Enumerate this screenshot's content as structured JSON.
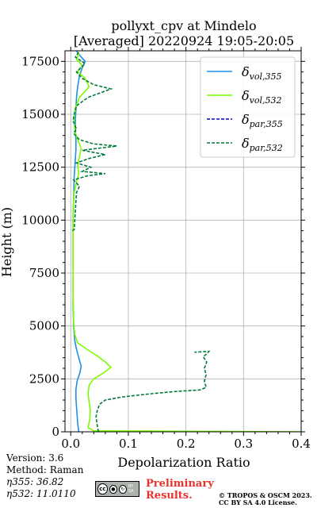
{
  "chart_data": {
    "type": "line",
    "title_line1": "pollyxt_cpv at Mindelo",
    "title_line2": "[Averaged] 20220924 19:05-20:05",
    "xlabel": "Depolarization Ratio",
    "ylabel": "Height (m)",
    "xlim": [
      -0.01,
      0.4
    ],
    "ylim": [
      0,
      18000
    ],
    "xticks": [
      "0.0",
      "0.1",
      "0.2",
      "0.3",
      "0.4"
    ],
    "xtick_values": [
      0.0,
      0.1,
      0.2,
      0.3,
      0.4
    ],
    "yticks": [
      "0",
      "2500",
      "5000",
      "7500",
      "10000",
      "12500",
      "15000",
      "17500"
    ],
    "ytick_values": [
      0,
      2500,
      5000,
      7500,
      10000,
      12500,
      15000,
      17500
    ],
    "grid": true,
    "legend_position": "top-right",
    "series": [
      {
        "name": "vol,355",
        "color": "#1f8fe8",
        "style": "solid",
        "points": [
          [
            0.014,
            0
          ],
          [
            0.012,
            400
          ],
          [
            0.011,
            800
          ],
          [
            0.01,
            1200
          ],
          [
            0.009,
            1600
          ],
          [
            0.009,
            2000
          ],
          [
            0.011,
            2400
          ],
          [
            0.016,
            2800
          ],
          [
            0.018,
            3100
          ],
          [
            0.014,
            3500
          ],
          [
            0.01,
            3900
          ],
          [
            0.007,
            4300
          ],
          [
            0.005,
            5000
          ],
          [
            0.004,
            6000
          ],
          [
            0.004,
            8000
          ],
          [
            0.004,
            10000
          ],
          [
            0.005,
            11000
          ],
          [
            0.006,
            12000
          ],
          [
            0.007,
            12500
          ],
          [
            0.008,
            12900
          ],
          [
            0.009,
            13300
          ],
          [
            0.009,
            13800
          ],
          [
            0.008,
            14300
          ],
          [
            0.008,
            14800
          ],
          [
            0.009,
            15200
          ],
          [
            0.01,
            15800
          ],
          [
            0.012,
            16300
          ],
          [
            0.015,
            16800
          ],
          [
            0.02,
            17200
          ],
          [
            0.025,
            17500
          ],
          [
            0.015,
            17800
          ],
          [
            0.01,
            18000
          ]
        ]
      },
      {
        "name": "vol,532",
        "color": "#7cfc00",
        "style": "solid",
        "points": [
          [
            0.4,
            0
          ],
          [
            0.04,
            50
          ],
          [
            0.03,
            200
          ],
          [
            0.033,
            600
          ],
          [
            0.034,
            1000
          ],
          [
            0.032,
            1400
          ],
          [
            0.03,
            1800
          ],
          [
            0.032,
            2200
          ],
          [
            0.04,
            2500
          ],
          [
            0.058,
            2800
          ],
          [
            0.07,
            3050
          ],
          [
            0.06,
            3300
          ],
          [
            0.045,
            3600
          ],
          [
            0.028,
            3900
          ],
          [
            0.012,
            4200
          ],
          [
            0.007,
            4600
          ],
          [
            0.005,
            5200
          ],
          [
            0.004,
            6500
          ],
          [
            0.004,
            8000
          ],
          [
            0.004,
            9500
          ],
          [
            0.004,
            10500
          ],
          [
            0.006,
            11300
          ],
          [
            0.01,
            11800
          ],
          [
            0.014,
            12200
          ],
          [
            0.012,
            12600
          ],
          [
            0.015,
            13000
          ],
          [
            0.018,
            13400
          ],
          [
            0.012,
            13800
          ],
          [
            0.007,
            14200
          ],
          [
            0.006,
            14800
          ],
          [
            0.008,
            15300
          ],
          [
            0.015,
            15800
          ],
          [
            0.032,
            16300
          ],
          [
            0.025,
            16700
          ],
          [
            0.012,
            17000
          ],
          [
            0.02,
            17300
          ],
          [
            0.01,
            17600
          ],
          [
            0.015,
            17900
          ]
        ]
      },
      {
        "name": "par,355",
        "color": "#0000cc",
        "style": "dashed",
        "points": []
      },
      {
        "name": "par,532",
        "color": "#007a3d",
        "style": "dashed",
        "points": [
          [
            0.048,
            0
          ],
          [
            0.046,
            300
          ],
          [
            0.044,
            700
          ],
          [
            0.046,
            1000
          ],
          [
            0.05,
            1300
          ],
          [
            0.06,
            1500
          ],
          [
            0.09,
            1650
          ],
          [
            0.14,
            1800
          ],
          [
            0.18,
            1900
          ],
          [
            0.225,
            1980
          ],
          [
            0.235,
            2100
          ],
          [
            0.232,
            2400
          ],
          [
            0.235,
            2700
          ],
          [
            0.232,
            3000
          ],
          [
            0.236,
            3300
          ],
          [
            0.23,
            3550
          ],
          [
            0.237,
            3700
          ],
          [
            0.24,
            3800
          ],
          [
            0.215,
            3760
          ]
        ]
      },
      {
        "name": "par,532-upper",
        "color": "#007a3d",
        "style": "dashed",
        "points": [
          [
            0.003,
            9500
          ],
          [
            0.006,
            9550
          ],
          [
            0.01,
            11300
          ],
          [
            0.015,
            11600
          ],
          [
            0.005,
            11900
          ],
          [
            0.03,
            12100
          ],
          [
            0.06,
            12200
          ],
          [
            0.02,
            12300
          ],
          [
            0.035,
            12500
          ],
          [
            0.01,
            12700
          ],
          [
            0.03,
            12900
          ],
          [
            0.06,
            13100
          ],
          [
            0.02,
            13300
          ],
          [
            0.08,
            13500
          ],
          [
            0.04,
            13600
          ],
          [
            0.015,
            13800
          ],
          [
            0.005,
            14100
          ],
          [
            0.01,
            14300
          ],
          [
            0.004,
            14700
          ],
          [
            0.006,
            15000
          ],
          [
            0.01,
            15400
          ],
          [
            0.03,
            15800
          ],
          [
            0.07,
            16200
          ],
          [
            0.04,
            16400
          ],
          [
            0.02,
            16700
          ],
          [
            0.01,
            17000
          ],
          [
            0.025,
            17400
          ],
          [
            0.008,
            17700
          ],
          [
            0.015,
            18000
          ]
        ]
      }
    ],
    "legend": [
      {
        "sym": "δ",
        "sub": "vol,355",
        "color": "#1f8fe8",
        "style": "solid"
      },
      {
        "sym": "δ",
        "sub": "vol,532",
        "color": "#7cfc00",
        "style": "solid"
      },
      {
        "sym": "δ",
        "sub": "par,355",
        "color": "#0000cc",
        "style": "dashed"
      },
      {
        "sym": "δ",
        "sub": "par,532",
        "color": "#007a3d",
        "style": "dashed"
      }
    ]
  },
  "info": {
    "version": "Version: 3.6",
    "method": "Method: Raman",
    "eta355": "η355:  36.82",
    "eta532": "η532: 11.0110"
  },
  "footer": {
    "preliminary_line1": "Preliminary",
    "preliminary_line2": "Results.",
    "copyright_line1": "© TROPOS & OSCM 2023.",
    "copyright_line2": "CC BY SA 4.0 License.",
    "cc_logo_text": "cc",
    "cc_badge_text": "BY SA"
  }
}
